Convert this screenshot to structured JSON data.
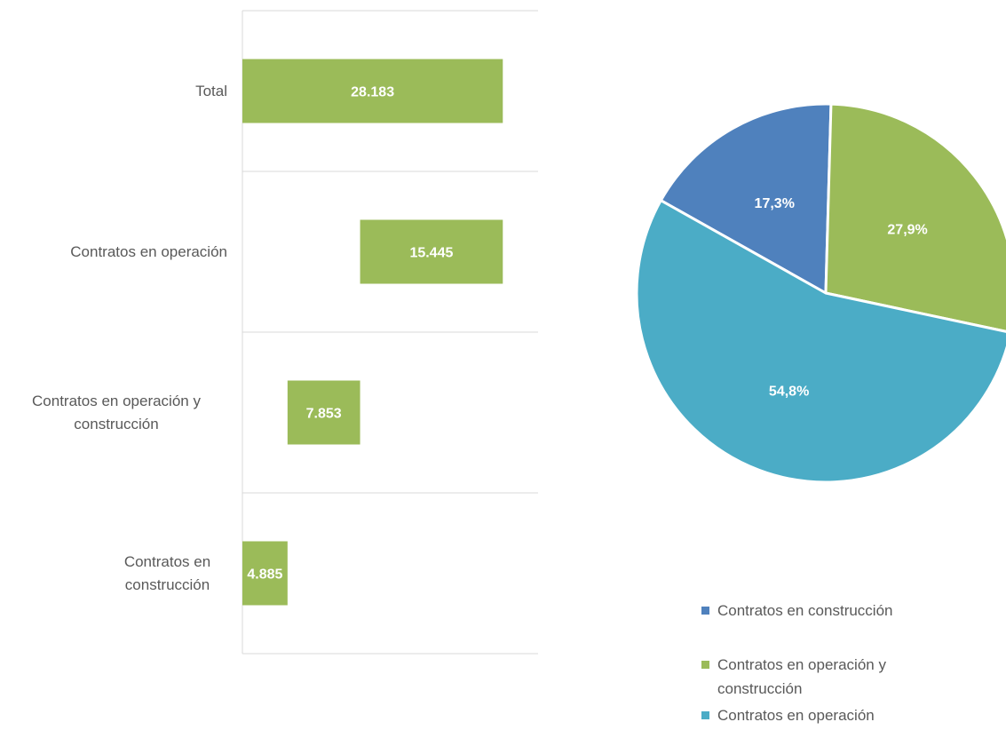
{
  "chart_data": [
    {
      "type": "waterfall",
      "categories": [
        "Total",
        "Contratos en operación",
        "Contratos en operación y construcción",
        "Contratos en construcción"
      ],
      "values": [
        28183,
        15445,
        7853,
        4885
      ],
      "value_labels": [
        "28.183",
        "15.445",
        "7.853",
        "4.885"
      ],
      "totals": [
        true,
        false,
        false,
        false
      ],
      "color": "#9bbb59",
      "xlim": [
        0,
        32000
      ],
      "grid": true
    },
    {
      "type": "pie",
      "categories": [
        "Contratos en construcción",
        "Contratos en operación y construcción",
        "Contratos en operación"
      ],
      "values": [
        17.3,
        27.9,
        54.8
      ],
      "value_labels": [
        "17,3%",
        "27,9%",
        "54,8%"
      ],
      "colors": [
        "#4f81bd",
        "#9bbb59",
        "#4bacc6"
      ],
      "legend": "bottom"
    }
  ]
}
